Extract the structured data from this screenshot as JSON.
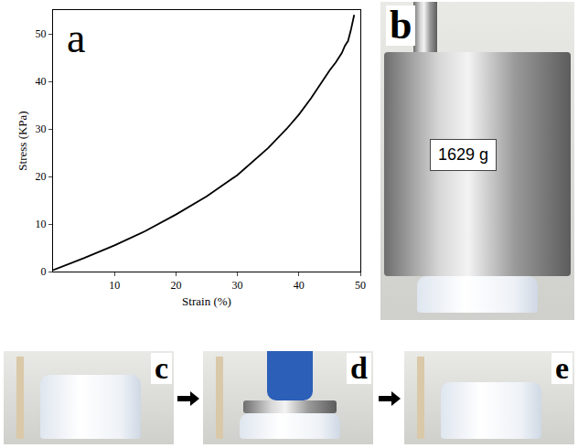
{
  "chart_data": {
    "type": "line",
    "annotations": [
      "a"
    ],
    "x_label": "Strain (%)",
    "y_label": "Stress (KPa)",
    "x": [
      0,
      5,
      10,
      15,
      20,
      25,
      30,
      35,
      38,
      40,
      42,
      44,
      45,
      46,
      47,
      47.5,
      48,
      48.5,
      49
    ],
    "series": [
      {
        "name": "Stress",
        "color": "#000000",
        "values": [
          0.3,
          2.8,
          5.5,
          8.5,
          12,
          15.8,
          20.3,
          26,
          30,
          33,
          36.5,
          40.5,
          42.3,
          44,
          46,
          47.5,
          48.5,
          51,
          54
        ]
      }
    ],
    "xlim": [
      0,
      50
    ],
    "xticks": [
      10,
      20,
      30,
      40,
      50
    ],
    "ylim": [
      0,
      55
    ],
    "yticks": [
      0,
      10,
      20,
      30,
      40,
      50
    ],
    "grid": false
  },
  "photos": [
    {
      "label": "b",
      "text": "1629 g"
    },
    {
      "label": "c"
    },
    {
      "label": "d"
    },
    {
      "label": "e"
    }
  ]
}
